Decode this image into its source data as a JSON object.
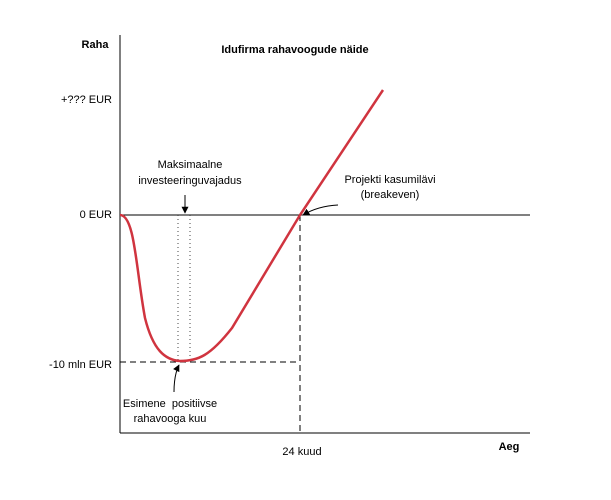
{
  "title": "Idufirma rahavoogude näide",
  "axes": {
    "y_label": "Raha",
    "x_label": "Aeg",
    "y_ticks": [
      "+??? EUR",
      "0 EUR",
      "-10 mln EUR"
    ],
    "x_ticks": [
      "24 kuud"
    ]
  },
  "annotations": {
    "max_investment": [
      "Maksimaalne",
      "investeeringuvajadus"
    ],
    "breakeven": [
      "Projekti kasumilävi",
      "(breakeven)"
    ],
    "first_positive": [
      "Esimene  positiivse",
      "rahavooga kuu"
    ]
  }
}
